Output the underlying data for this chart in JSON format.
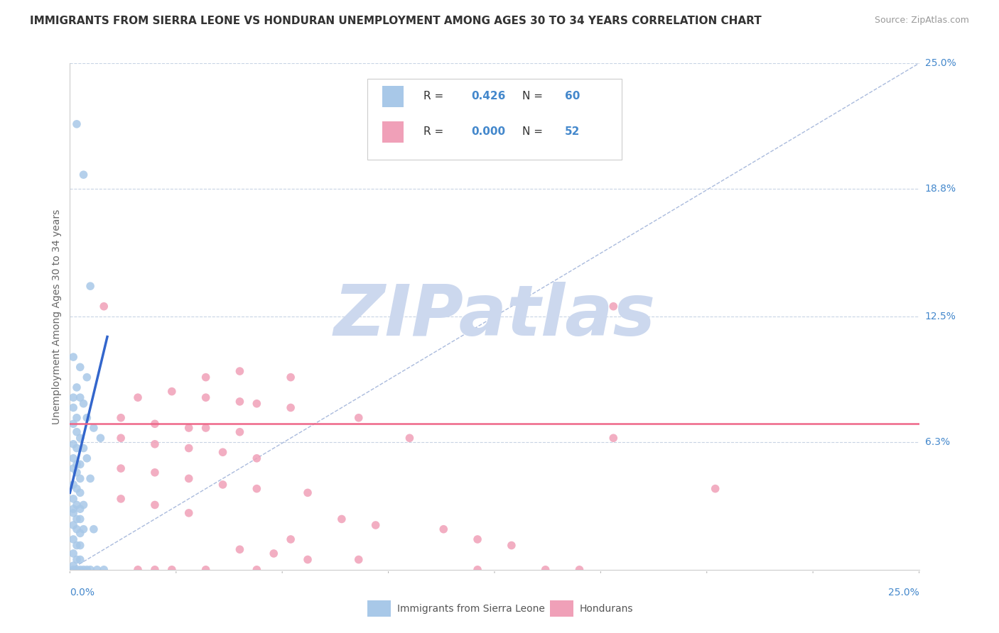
{
  "title": "IMMIGRANTS FROM SIERRA LEONE VS HONDURAN UNEMPLOYMENT AMONG AGES 30 TO 34 YEARS CORRELATION CHART",
  "source": "Source: ZipAtlas.com",
  "ylabel": "Unemployment Among Ages 30 to 34 years",
  "xlim": [
    0.0,
    0.25
  ],
  "ylim": [
    0.0,
    0.25
  ],
  "ytick_labels_right": [
    "25.0%",
    "18.8%",
    "12.5%",
    "6.3%"
  ],
  "ytick_vals_right": [
    0.25,
    0.188,
    0.125,
    0.063
  ],
  "legend_label1": "Immigrants from Sierra Leone",
  "legend_label2": "Hondurans",
  "R1": "0.426",
  "N1": "60",
  "R2": "0.000",
  "N2": "52",
  "color_blue": "#a8c8e8",
  "color_pink": "#f0a0b8",
  "color_blue_text": "#4488cc",
  "line_blue": "#3366cc",
  "line_pink": "#ee6688",
  "diagonal_color": "#aabbdd",
  "watermark_color": "#ccd8ee",
  "background": "#ffffff",
  "grid_color": "#c8d4e4",
  "scatter_blue": [
    [
      0.002,
      0.22
    ],
    [
      0.004,
      0.195
    ],
    [
      0.006,
      0.14
    ],
    [
      0.001,
      0.105
    ],
    [
      0.003,
      0.1
    ],
    [
      0.005,
      0.095
    ],
    [
      0.002,
      0.09
    ],
    [
      0.001,
      0.085
    ],
    [
      0.003,
      0.085
    ],
    [
      0.004,
      0.082
    ],
    [
      0.001,
      0.08
    ],
    [
      0.002,
      0.075
    ],
    [
      0.005,
      0.075
    ],
    [
      0.001,
      0.072
    ],
    [
      0.002,
      0.068
    ],
    [
      0.003,
      0.065
    ],
    [
      0.001,
      0.062
    ],
    [
      0.002,
      0.06
    ],
    [
      0.004,
      0.06
    ],
    [
      0.001,
      0.055
    ],
    [
      0.002,
      0.052
    ],
    [
      0.003,
      0.052
    ],
    [
      0.001,
      0.05
    ],
    [
      0.002,
      0.048
    ],
    [
      0.003,
      0.045
    ],
    [
      0.001,
      0.042
    ],
    [
      0.002,
      0.04
    ],
    [
      0.003,
      0.038
    ],
    [
      0.001,
      0.035
    ],
    [
      0.002,
      0.032
    ],
    [
      0.004,
      0.032
    ],
    [
      0.001,
      0.028
    ],
    [
      0.002,
      0.025
    ],
    [
      0.003,
      0.025
    ],
    [
      0.001,
      0.022
    ],
    [
      0.002,
      0.02
    ],
    [
      0.003,
      0.018
    ],
    [
      0.001,
      0.015
    ],
    [
      0.002,
      0.012
    ],
    [
      0.003,
      0.012
    ],
    [
      0.001,
      0.008
    ],
    [
      0.002,
      0.005
    ],
    [
      0.003,
      0.005
    ],
    [
      0.001,
      0.002
    ],
    [
      0.002,
      0.0
    ],
    [
      0.001,
      0.0
    ],
    [
      0.003,
      0.0
    ],
    [
      0.004,
      0.0
    ],
    [
      0.005,
      0.0
    ],
    [
      0.006,
      0.0
    ],
    [
      0.008,
      0.0
    ],
    [
      0.01,
      0.0
    ],
    [
      0.001,
      0.03
    ],
    [
      0.003,
      0.03
    ],
    [
      0.007,
      0.07
    ],
    [
      0.009,
      0.065
    ],
    [
      0.005,
      0.055
    ],
    [
      0.006,
      0.045
    ],
    [
      0.004,
      0.02
    ],
    [
      0.007,
      0.02
    ]
  ],
  "scatter_pink": [
    [
      0.01,
      0.13
    ],
    [
      0.16,
      0.13
    ],
    [
      0.04,
      0.095
    ],
    [
      0.05,
      0.098
    ],
    [
      0.065,
      0.095
    ],
    [
      0.02,
      0.085
    ],
    [
      0.03,
      0.088
    ],
    [
      0.04,
      0.085
    ],
    [
      0.05,
      0.083
    ],
    [
      0.055,
      0.082
    ],
    [
      0.065,
      0.08
    ],
    [
      0.015,
      0.075
    ],
    [
      0.025,
      0.072
    ],
    [
      0.035,
      0.07
    ],
    [
      0.04,
      0.07
    ],
    [
      0.05,
      0.068
    ],
    [
      0.015,
      0.065
    ],
    [
      0.025,
      0.062
    ],
    [
      0.035,
      0.06
    ],
    [
      0.045,
      0.058
    ],
    [
      0.055,
      0.055
    ],
    [
      0.015,
      0.05
    ],
    [
      0.025,
      0.048
    ],
    [
      0.035,
      0.045
    ],
    [
      0.045,
      0.042
    ],
    [
      0.055,
      0.04
    ],
    [
      0.07,
      0.038
    ],
    [
      0.015,
      0.035
    ],
    [
      0.025,
      0.032
    ],
    [
      0.035,
      0.028
    ],
    [
      0.08,
      0.025
    ],
    [
      0.09,
      0.022
    ],
    [
      0.11,
      0.02
    ],
    [
      0.065,
      0.015
    ],
    [
      0.12,
      0.015
    ],
    [
      0.13,
      0.012
    ],
    [
      0.05,
      0.01
    ],
    [
      0.06,
      0.008
    ],
    [
      0.07,
      0.005
    ],
    [
      0.085,
      0.005
    ],
    [
      0.04,
      0.0
    ],
    [
      0.055,
      0.0
    ],
    [
      0.12,
      0.0
    ],
    [
      0.14,
      0.0
    ],
    [
      0.15,
      0.0
    ],
    [
      0.02,
      0.0
    ],
    [
      0.025,
      0.0
    ],
    [
      0.03,
      0.0
    ],
    [
      0.085,
      0.075
    ],
    [
      0.1,
      0.065
    ],
    [
      0.16,
      0.065
    ],
    [
      0.19,
      0.04
    ]
  ],
  "pink_line_y": 0.072,
  "blue_line_x0": 0.0,
  "blue_line_y0": 0.038,
  "blue_line_x1": 0.011,
  "blue_line_y1": 0.115
}
